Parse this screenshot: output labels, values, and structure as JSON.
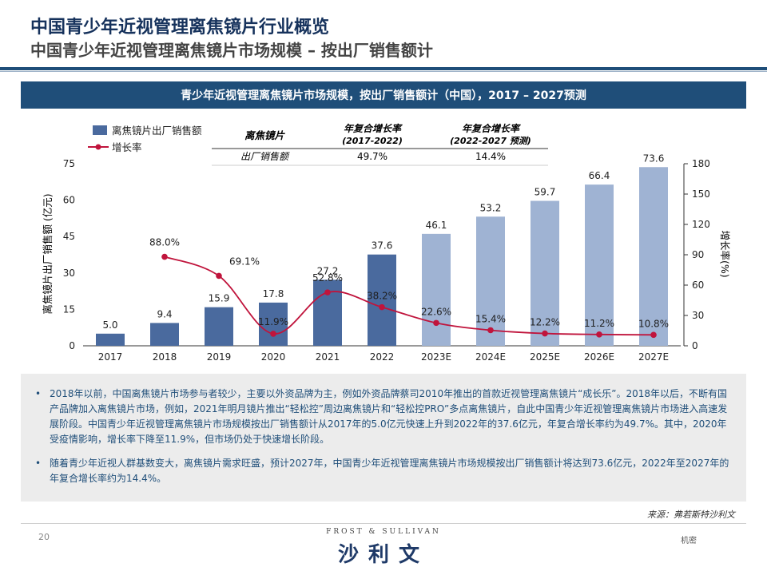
{
  "header": {
    "title": "中国青少年近视管理离焦镜片行业概览",
    "subtitle": "中国青少年近视管理离焦镜片市场规模 – 按出厂销售额计"
  },
  "banner": "青少年近视管理离焦镜片市场规模，按出厂销售额计（中国），2017 – 2027预测",
  "colors": {
    "navy": "#1f4e79",
    "bar_hist": "#4a6a9e",
    "bar_forecast": "#9fb3d3",
    "line": "#c0143c"
  },
  "legend": {
    "bar": "离焦镜片出厂销售额",
    "line": "增长率"
  },
  "cagr_table": {
    "header": [
      "离焦镜片",
      "年复合增长率",
      "年复合增长率"
    ],
    "header_sub": [
      "",
      "(2017-2022)",
      "(2022-2027 预测)"
    ],
    "row": [
      "出厂销售额",
      "49.7%",
      "14.4%"
    ]
  },
  "chart_data": {
    "type": "bar",
    "categories": [
      "2017",
      "2018",
      "2019",
      "2020",
      "2021",
      "2022",
      "2023E",
      "2024E",
      "2025E",
      "2026E",
      "2027E"
    ],
    "series": [
      {
        "name": "离焦镜片出厂销售额",
        "values": [
          5.0,
          9.4,
          15.9,
          17.8,
          27.2,
          37.6,
          46.1,
          53.2,
          59.7,
          66.4,
          73.6
        ]
      },
      {
        "name": "增长率",
        "type": "line",
        "values": [
          null,
          88.0,
          69.1,
          11.9,
          52.8,
          38.2,
          22.6,
          15.4,
          12.2,
          11.2,
          10.8
        ]
      }
    ],
    "bar_labels": [
      "5.0",
      "9.4",
      "15.9",
      "17.8",
      "27.2",
      "37.6",
      "46.1",
      "53.2",
      "59.7",
      "66.4",
      "73.6"
    ],
    "line_labels": [
      "",
      "88.0%",
      "69.1%",
      "11.9%",
      "52.8%",
      "38.2%",
      "22.6%",
      "15.4%",
      "12.2%",
      "11.2%",
      "10.8%"
    ],
    "ylabel": "离焦镜片出厂销售额 (亿元)",
    "y2label": "增长率(%)",
    "ylim": [
      0,
      75
    ],
    "y2lim": [
      0,
      180
    ],
    "yticks": [
      "0",
      "15",
      "30",
      "45",
      "60",
      "75"
    ],
    "y2ticks": [
      "0",
      "30",
      "60",
      "90",
      "120",
      "150",
      "180"
    ]
  },
  "bullets": [
    "2018年以前，中国离焦镜片市场参与者较少，主要以外资品牌为主，例如外资品牌蔡司2010年推出的首款近视管理离焦镜片“成长乐”。2018年以后，不断有国产品牌加入离焦镜片市场，例如，2021年明月镜片推出“轻松控”周边离焦镜片和“轻松控PRO”多点离焦镜片，自此中国青少年近视管理离焦镜片市场进入高速发展阶段。中国青少年近视管理离焦镜片市场规模按出厂销售额计从2017年的5.0亿元快速上升到2022年的37.6亿元，年复合增长率约为49.7%。其中，2020年受疫情影响，增长率下降至11.9%，但市场仍处于快速增长阶段。",
    "随着青少年近视人群基数变大，离焦镜片需求旺盛，预计2027年，中国青少年近视管理离焦镜片市场规模按出厂销售额计将达到73.6亿元，2022年至2027年的年复合增长率约为14.4%。"
  ],
  "footer": {
    "source": "来源：弗若斯特沙利文",
    "page": "20",
    "brand_en": "FROST & SULLIVAN",
    "brand_cn": "沙利文",
    "confidential": "机密"
  }
}
